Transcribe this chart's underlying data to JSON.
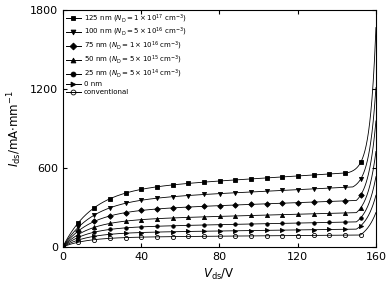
{
  "title": "",
  "xlabel": "$V_\\mathrm{ds}$/V",
  "ylabel": "$I_\\mathrm{ds}$/mA$\\cdot$mm$^{-1}$",
  "xlim": [
    0,
    160
  ],
  "ylim": [
    0,
    1800
  ],
  "xticks": [
    0,
    40,
    80,
    120,
    160
  ],
  "yticks": [
    0,
    600,
    1200,
    1800
  ],
  "background_color": "#ffffff",
  "curves": [
    {
      "label": "125 nm ($N_\\mathrm{D} = 1 \\times 10^{17}$ cm$^{-3}$)",
      "sat_level": 430,
      "sat_slope": 0.9,
      "knee_v": 15,
      "exp_scale": 3.0,
      "exp_start": 145,
      "final_val": 1650,
      "marker": "s",
      "fillstyle": "full",
      "ms": 3.0
    },
    {
      "label": "100 nm ($N_\\mathrm{D} = 5 \\times 10^{16}$ cm$^{-3}$)",
      "sat_level": 350,
      "sat_slope": 0.7,
      "knee_v": 15,
      "exp_scale": 3.5,
      "exp_start": 148,
      "final_val": 1200,
      "marker": "v",
      "fillstyle": "full",
      "ms": 3.0
    },
    {
      "label": "75 nm ($N_\\mathrm{D} = 1 \\times 10^{16}$ cm$^{-3}$)",
      "sat_level": 270,
      "sat_slope": 0.55,
      "knee_v": 14,
      "exp_scale": 4.0,
      "exp_start": 150,
      "final_val": 950,
      "marker": "D",
      "fillstyle": "full",
      "ms": 2.8
    },
    {
      "label": "50 nm ($N_\\mathrm{D} = 5 \\times 10^{15}$ cm$^{-3}$)",
      "sat_level": 200,
      "sat_slope": 0.4,
      "knee_v": 13,
      "exp_scale": 4.5,
      "exp_start": 150,
      "final_val": 720,
      "marker": "^",
      "fillstyle": "full",
      "ms": 3.0
    },
    {
      "label": "25 nm ($N_\\mathrm{D} = 5 \\times 10^{14}$ cm$^{-3}$)",
      "sat_level": 145,
      "sat_slope": 0.3,
      "knee_v": 12,
      "exp_scale": 5.0,
      "exp_start": 150,
      "final_val": 530,
      "marker": "o",
      "fillstyle": "full",
      "ms": 2.5
    },
    {
      "label": "0 nm",
      "sat_level": 105,
      "sat_slope": 0.2,
      "knee_v": 12,
      "exp_scale": 5.5,
      "exp_start": 150,
      "final_val": 390,
      "marker": ">",
      "fillstyle": "full",
      "ms": 3.0
    },
    {
      "label": "conventional",
      "sat_level": 72,
      "sat_slope": 0.12,
      "knee_v": 12,
      "exp_scale": 6.0,
      "exp_start": 152,
      "final_val": 260,
      "marker": "o",
      "fillstyle": "none",
      "ms": 3.0
    }
  ],
  "legend_labels": [
    "125 nm ($N_\\mathrm{D} = 1 \\times 10^{17}$ cm$^{-3}$)",
    "100 nm ($N_\\mathrm{D} = 5 \\times 10^{16}$ cm$^{-3}$)",
    "75 nm ($N_\\mathrm{D} = 1 \\times 10^{16}$ cm$^{-3}$)",
    "50 nm ($N_\\mathrm{D} = 5 \\times 10^{15}$ cm$^{-3}$)",
    "25 nm ($N_\\mathrm{D} = 5 \\times 10^{14}$ cm$^{-3}$)",
    "0 nm",
    "conventional"
  ],
  "legend_markers": [
    "s",
    "v",
    "D",
    "^",
    "o",
    ">",
    "o"
  ],
  "legend_fillstyles": [
    "full",
    "full",
    "full",
    "full",
    "full",
    "full",
    "none"
  ]
}
